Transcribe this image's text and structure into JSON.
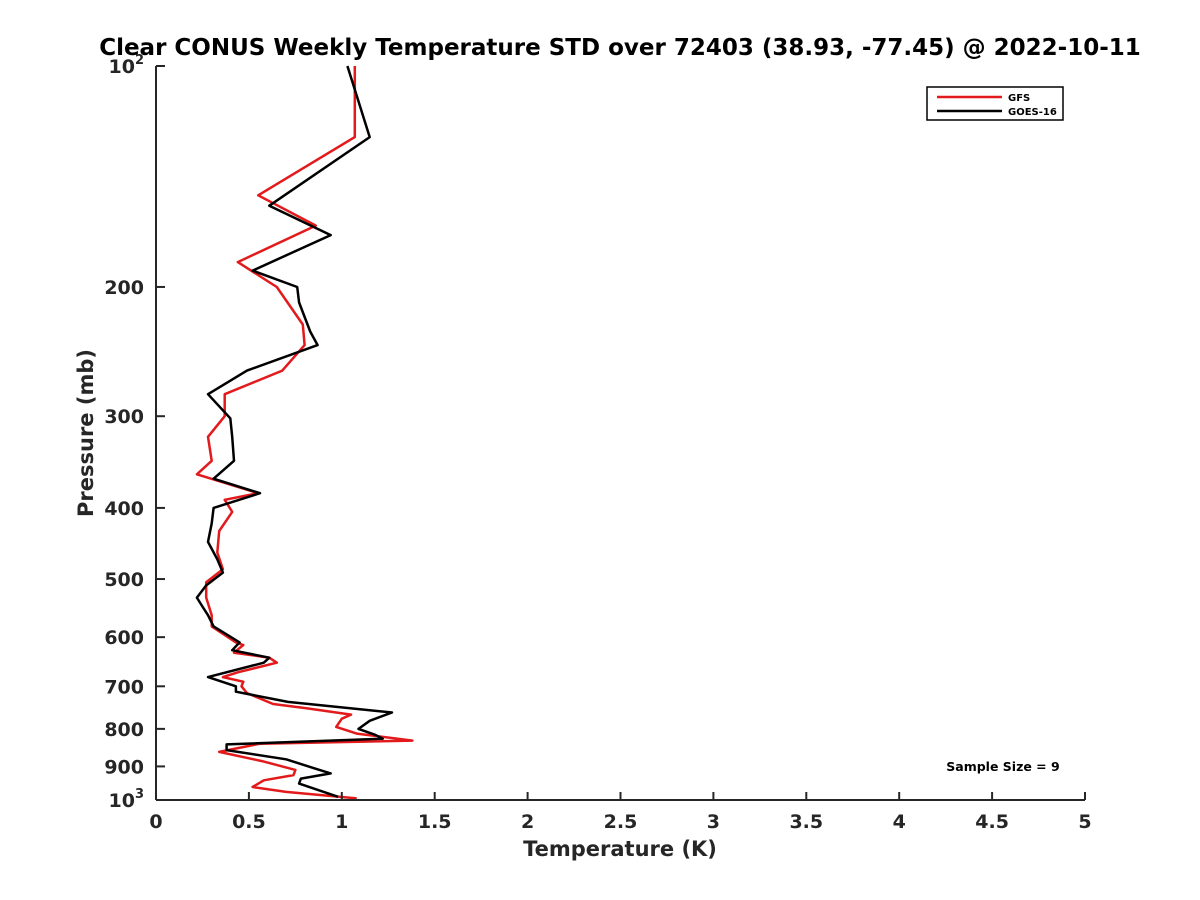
{
  "chart_data": {
    "type": "line",
    "title": "Clear CONUS Weekly Temperature STD over 72403 (38.93, -77.45) @ 2022-10-11",
    "xlabel": "Temperature (K)",
    "ylabel": "Pressure (mb)",
    "xlim": [
      0,
      5
    ],
    "ylim": [
      100,
      1000
    ],
    "y_scale": "log",
    "y_reversed": true,
    "x_ticks": [
      "0",
      "0.5",
      "1",
      "1.5",
      "2",
      "2.5",
      "3",
      "3.5",
      "4",
      "4.5",
      "5"
    ],
    "y_ticks": [
      {
        "value": 100,
        "base": "10",
        "exp": "2"
      },
      {
        "value": 200,
        "label": "200"
      },
      {
        "value": 300,
        "label": "300"
      },
      {
        "value": 400,
        "label": "400"
      },
      {
        "value": 500,
        "label": "500"
      },
      {
        "value": 600,
        "label": "600"
      },
      {
        "value": 700,
        "label": "700"
      },
      {
        "value": 800,
        "label": "800"
      },
      {
        "value": 900,
        "label": "900"
      },
      {
        "value": 1000,
        "base": "10",
        "exp": "3"
      }
    ],
    "grid": false,
    "legend_position": "top-right",
    "annotation": "Sample Size = 9",
    "series": [
      {
        "name": "GFS",
        "color": "#e31a1c",
        "points": [
          [
            1.07,
            100
          ],
          [
            1.07,
            125
          ],
          [
            0.55,
            150
          ],
          [
            0.86,
            165
          ],
          [
            0.44,
            185
          ],
          [
            0.65,
            200
          ],
          [
            0.79,
            225
          ],
          [
            0.8,
            240
          ],
          [
            0.68,
            260
          ],
          [
            0.37,
            280
          ],
          [
            0.37,
            300
          ],
          [
            0.28,
            320
          ],
          [
            0.3,
            345
          ],
          [
            0.22,
            360
          ],
          [
            0.55,
            382
          ],
          [
            0.37,
            390
          ],
          [
            0.41,
            405
          ],
          [
            0.34,
            430
          ],
          [
            0.33,
            460
          ],
          [
            0.36,
            485
          ],
          [
            0.27,
            505
          ],
          [
            0.27,
            530
          ],
          [
            0.3,
            560
          ],
          [
            0.3,
            580
          ],
          [
            0.43,
            610
          ],
          [
            0.47,
            615
          ],
          [
            0.42,
            630
          ],
          [
            0.61,
            640
          ],
          [
            0.65,
            650
          ],
          [
            0.44,
            670
          ],
          [
            0.36,
            680
          ],
          [
            0.47,
            690
          ],
          [
            0.46,
            700
          ],
          [
            0.49,
            715
          ],
          [
            0.63,
            740
          ],
          [
            0.81,
            750
          ],
          [
            1.05,
            765
          ],
          [
            1.0,
            775
          ],
          [
            0.97,
            795
          ],
          [
            1.08,
            812
          ],
          [
            1.38,
            830
          ],
          [
            0.56,
            838
          ],
          [
            0.34,
            860
          ],
          [
            0.57,
            885
          ],
          [
            0.75,
            910
          ],
          [
            0.74,
            925
          ],
          [
            0.58,
            940
          ],
          [
            0.52,
            960
          ],
          [
            0.7,
            975
          ],
          [
            1.08,
            995
          ]
        ]
      },
      {
        "name": "GOES-16",
        "color": "#000000",
        "points": [
          [
            1.03,
            100
          ],
          [
            1.15,
            125
          ],
          [
            0.61,
            155
          ],
          [
            0.94,
            170
          ],
          [
            0.52,
            190
          ],
          [
            0.76,
            200
          ],
          [
            0.77,
            210
          ],
          [
            0.83,
            230
          ],
          [
            0.87,
            240
          ],
          [
            0.49,
            260
          ],
          [
            0.28,
            280
          ],
          [
            0.4,
            302
          ],
          [
            0.41,
            320
          ],
          [
            0.42,
            345
          ],
          [
            0.31,
            365
          ],
          [
            0.56,
            382
          ],
          [
            0.31,
            400
          ],
          [
            0.3,
            420
          ],
          [
            0.28,
            445
          ],
          [
            0.33,
            470
          ],
          [
            0.36,
            490
          ],
          [
            0.27,
            510
          ],
          [
            0.22,
            530
          ],
          [
            0.25,
            545
          ],
          [
            0.28,
            560
          ],
          [
            0.31,
            580
          ],
          [
            0.45,
            610
          ],
          [
            0.41,
            625
          ],
          [
            0.61,
            640
          ],
          [
            0.58,
            650
          ],
          [
            0.28,
            680
          ],
          [
            0.43,
            700
          ],
          [
            0.43,
            712
          ],
          [
            0.71,
            735
          ],
          [
            1.27,
            760
          ],
          [
            1.15,
            780
          ],
          [
            1.09,
            800
          ],
          [
            1.18,
            815
          ],
          [
            1.22,
            825
          ],
          [
            0.38,
            840
          ],
          [
            0.38,
            855
          ],
          [
            0.7,
            880
          ],
          [
            0.85,
            905
          ],
          [
            0.94,
            920
          ],
          [
            0.78,
            935
          ],
          [
            0.77,
            950
          ],
          [
            0.98,
            990
          ]
        ]
      }
    ]
  }
}
